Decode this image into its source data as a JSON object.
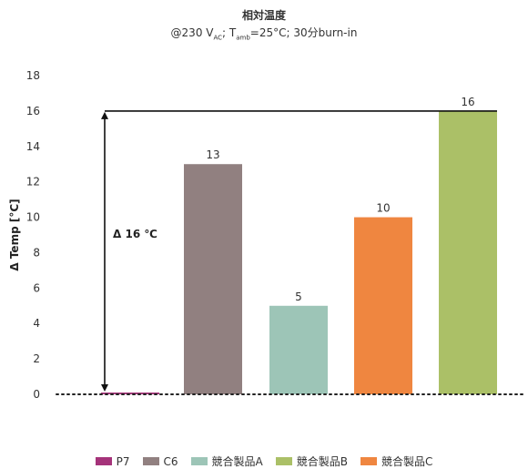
{
  "chart_data": {
    "type": "bar",
    "title": "相対温度",
    "subtitle": {
      "prefix": "@230 V",
      "sub1": "AC",
      "mid": "; T",
      "sub2": "amb",
      "suffix": "=25°C; 30分burn-in"
    },
    "ylabel": "Δ Temp [°C]",
    "ylim": [
      0,
      18
    ],
    "yticks": [
      0,
      2,
      4,
      6,
      8,
      10,
      12,
      14,
      16,
      18
    ],
    "categories": [
      "P7",
      "C6",
      "競合製品A",
      "競合製品B",
      "競合製品C"
    ],
    "bars": [
      {
        "name": "P7",
        "value": 0.1,
        "label": "",
        "color": "#a5337a"
      },
      {
        "name": "C6",
        "value": 13,
        "label": "13",
        "color": "#918080"
      },
      {
        "name": "競合製品A",
        "value": 5,
        "label": "5",
        "color": "#9dc5b7"
      },
      {
        "name": "競合製品C",
        "value": 10,
        "label": "10",
        "color": "#ef8640"
      },
      {
        "name": "競合製品B",
        "value": 16,
        "label": "16",
        "color": "#abc067"
      }
    ],
    "legend": [
      {
        "name": "P7",
        "color": "#a5337a"
      },
      {
        "name": "C6",
        "color": "#918080"
      },
      {
        "name": "競合製品A",
        "color": "#9dc5b7"
      },
      {
        "name": "競合製品B",
        "color": "#abc067"
      },
      {
        "name": "競合製品C",
        "color": "#ef8640"
      }
    ],
    "annotation": {
      "label": "Δ 16 ℃",
      "from": 0,
      "to": 16
    },
    "grid": false,
    "legend_position": "bottom"
  }
}
